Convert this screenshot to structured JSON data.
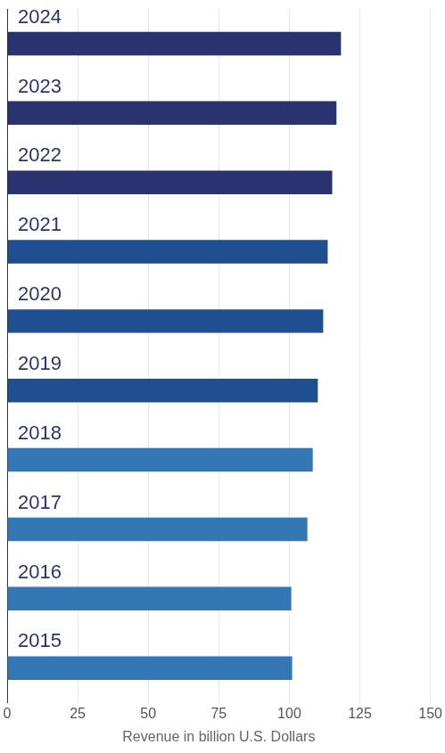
{
  "chart_data": {
    "type": "bar",
    "orientation": "horizontal",
    "categories": [
      "2024",
      "2023",
      "2022",
      "2021",
      "2020",
      "2019",
      "2018",
      "2017",
      "2016",
      "2015"
    ],
    "values": [
      118.3,
      116.7,
      115.2,
      113.6,
      112,
      110.1,
      108.3,
      106.4,
      100.7,
      101
    ],
    "colors": [
      "#283370",
      "#283370",
      "#283370",
      "#204f8f",
      "#204f8f",
      "#204f8f",
      "#3377b5",
      "#3377b5",
      "#3377b5",
      "#3377b5"
    ],
    "x_label": "Revenue in billion U.S. Dollars",
    "xlim": [
      0,
      150
    ],
    "xticks": [
      0,
      25,
      50,
      75,
      100,
      125,
      150
    ],
    "grid": true
  }
}
